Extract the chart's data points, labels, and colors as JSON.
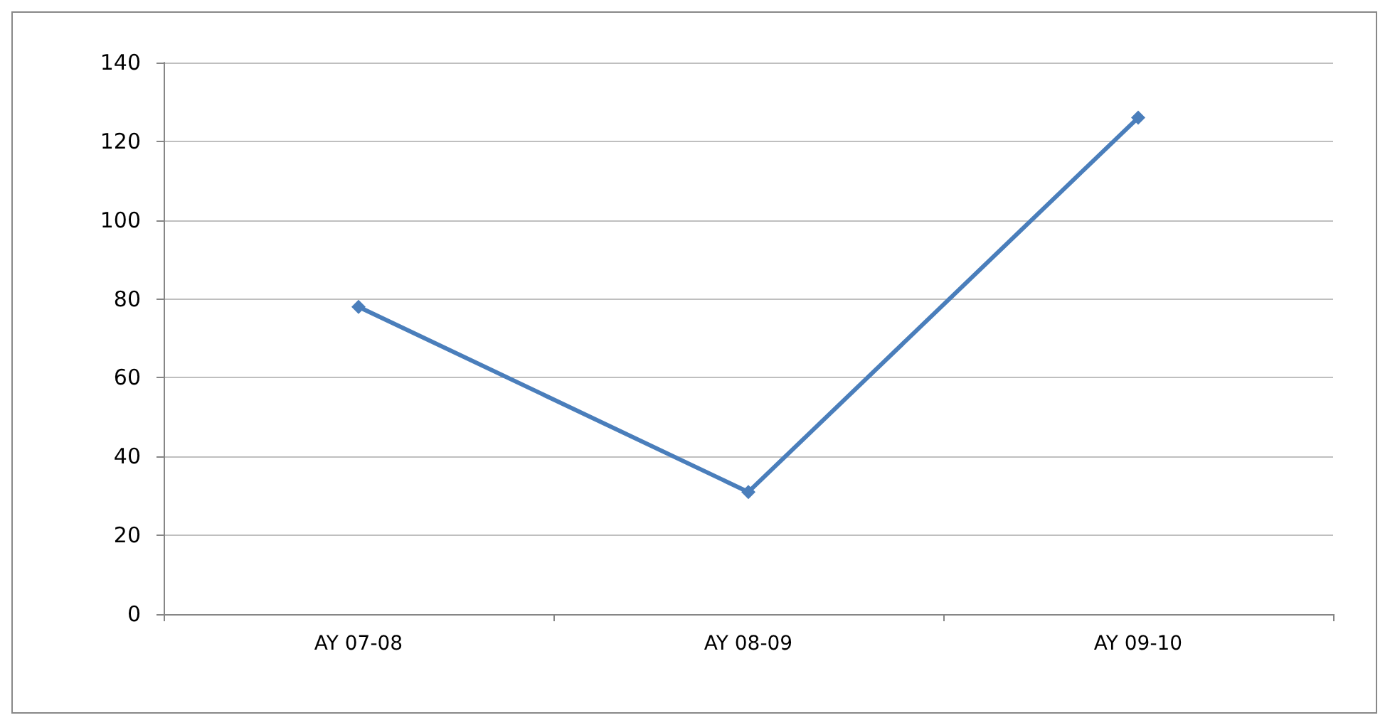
{
  "chart_data": {
    "type": "line",
    "categories": [
      "AY 07-08",
      "AY 08-09",
      "AY 09-10"
    ],
    "series": [
      {
        "color": "#4a7ebb",
        "values": [
          78,
          31,
          126
        ]
      }
    ],
    "ylim": [
      0,
      140
    ],
    "yticks": [
      0,
      20,
      40,
      60,
      80,
      100,
      120,
      140
    ],
    "grid": "y",
    "marker": "diamond",
    "line_style": "solid"
  }
}
